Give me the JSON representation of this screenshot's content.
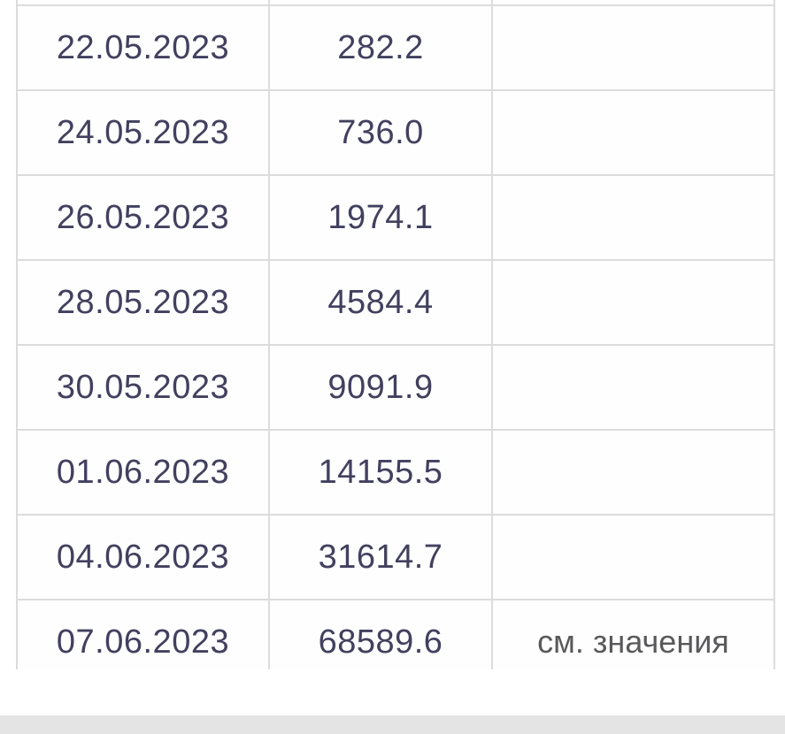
{
  "table": {
    "rows": [
      {
        "date": "22.05.2023",
        "value": "282.2",
        "note": ""
      },
      {
        "date": "24.05.2023",
        "value": "736.0",
        "note": ""
      },
      {
        "date": "26.05.2023",
        "value": "1974.1",
        "note": ""
      },
      {
        "date": "28.05.2023",
        "value": "4584.4",
        "note": ""
      },
      {
        "date": "30.05.2023",
        "value": "9091.9",
        "note": ""
      },
      {
        "date": "01.06.2023",
        "value": "14155.5",
        "note": ""
      },
      {
        "date": "04.06.2023",
        "value": "31614.7",
        "note": ""
      },
      {
        "date": "07.06.2023",
        "value": "68589.6",
        "note": "см. значения"
      }
    ]
  },
  "chart_data": {
    "type": "table",
    "x": [
      "22.05.2023",
      "24.05.2023",
      "26.05.2023",
      "28.05.2023",
      "30.05.2023",
      "01.06.2023",
      "04.06.2023",
      "07.06.2023"
    ],
    "values": [
      282.2,
      736.0,
      1974.1,
      4584.4,
      9091.9,
      14155.5,
      31614.7,
      68589.6
    ],
    "notes": [
      "",
      "",
      "",
      "",
      "",
      "",
      "",
      "см. значения"
    ],
    "title": "",
    "grid": "full-cell-borders",
    "legend": "none"
  },
  "colors": {
    "text_primary": "#42405f",
    "text_note": "#59595b",
    "border": "#dcdcdc",
    "cell_background": "#fefefe",
    "page_background": "#ffffff",
    "bottom_bar": "#e4e4e4"
  }
}
